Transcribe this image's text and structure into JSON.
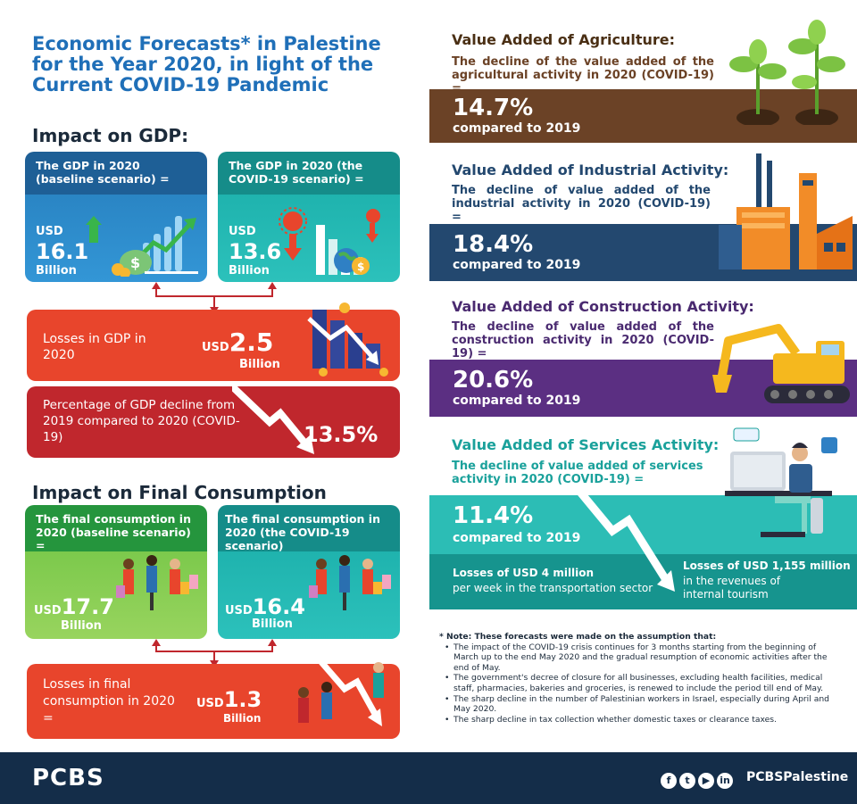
{
  "title": "Economic Forecasts* in Palestine for the Year 2020, in light of the Current COVID-19 Pandemic",
  "gdp": {
    "heading": "Impact on GDP:",
    "baseline_label": "The GDP in 2020 (baseline scenario) =",
    "baseline_usd": "USD",
    "baseline_value": "16.1",
    "baseline_unit": "Billion",
    "covid_label": "The GDP in 2020 (the COVID-19 scenario) =",
    "covid_usd": "USD",
    "covid_value": "13.6",
    "covid_unit": "Billion",
    "losses_label": "Losses in GDP in 2020",
    "losses_usd": "USD",
    "losses_value": "2.5",
    "losses_unit": "Billion",
    "pct_label": "Percentage of GDP decline from 2019 compared to 2020 (COVID-19)",
    "pct_value": "13.5%"
  },
  "consumption": {
    "heading": "Impact on Final Consumption",
    "baseline_label": "The final consumption in 2020 (baseline scenario) =",
    "baseline_usd": "USD",
    "baseline_value": "17.7",
    "baseline_unit": "Billion",
    "covid_label": "The final consumption in 2020 (the COVID-19 scenario)",
    "covid_usd": "USD",
    "covid_value": "16.4",
    "covid_unit": "Billion",
    "losses_label": "Losses in final consumption in 2020 =",
    "losses_usd": "USD",
    "losses_value": "1.3",
    "losses_unit": "Billion"
  },
  "agriculture": {
    "title": "Value Added of Agriculture:",
    "sub": "The decline of the value added of the agricultural activity in 2020 (COVID-19) =",
    "pct": "14.7%",
    "cmp": "compared to 2019"
  },
  "industry": {
    "title": "Value Added of Industrial Activity:",
    "sub": "The decline of value added of the industrial activity in 2020 (COVID-19) =",
    "pct": "18.4%",
    "cmp": "compared to 2019"
  },
  "construction": {
    "title": "Value Added of Construction Activity:",
    "sub": "The decline of value added of the construction activity in 2020 (COVID-19) =",
    "pct": "20.6%",
    "cmp": "compared to 2019"
  },
  "services": {
    "title": "Value Added of Services Activity:",
    "sub": "The decline of value added of services activity in 2020 (COVID-19) =",
    "pct": "11.4%",
    "cmp": "compared to 2019",
    "transport_loss": "Losses of USD 4 million",
    "transport_detail": "per week in the transportation sector",
    "tourism_loss": "Losses of USD 1,155 million",
    "tourism_detail": "in the revenues of internal tourism"
  },
  "note": {
    "heading": "* Note: These forecasts were made on the assumption that:",
    "items": [
      "The impact of the COVID-19 crisis continues for 3 months starting from the beginning of March up to the end May 2020 and the gradual resumption of economic activities after the end of May.",
      "The government's decree of closure for all businesses, excluding health facilities, medical staff, pharmacies, bakeries and groceries, is renewed to include the period till end of May.",
      "The sharp decline in the number of Palestinian workers in Israel, especially during April and May 2020.",
      "The sharp decline in tax collection whether domestic taxes or clearance taxes."
    ]
  },
  "footer": {
    "logo": "PCBS",
    "handle": "PCBSPalestine",
    "icons": [
      "facebook-icon",
      "twitter-icon",
      "youtube-icon",
      "linkedin-icon"
    ]
  },
  "colors": {
    "title_blue": "#1f6fb8",
    "gdp_blue": "#1e5f96",
    "teal": "#1aa19b",
    "orange_red": "#e8452c",
    "dark_red": "#c0272d",
    "green": "#3aa346",
    "brown": "#6b4226",
    "navy": "#23486f",
    "purple": "#5b2f82",
    "footer": "#142d49"
  }
}
